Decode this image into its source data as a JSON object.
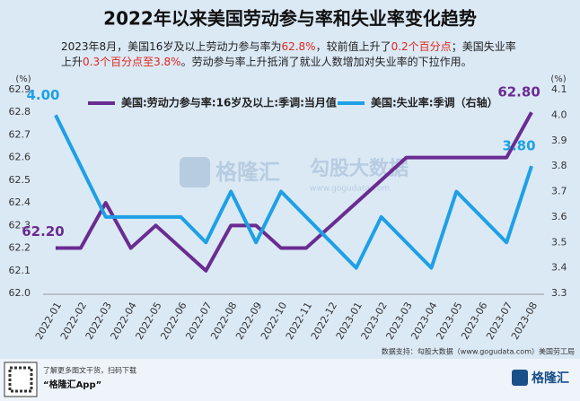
{
  "chart_data": {
    "type": "line",
    "title": "2022年以来美国劳动参与率和失业率变化趋势",
    "subtitle_lines": [
      [
        {
          "text": "2023年8月，美国16岁及以上劳动力参与率为"
        },
        {
          "text": "62.8%",
          "highlight": true
        },
        {
          "text": "，较前值上升了"
        },
        {
          "text": "0.2个百分点",
          "highlight": true
        },
        {
          "text": "；美国失业率"
        }
      ],
      [
        {
          "text": "上升"
        },
        {
          "text": "0.3个百分点至3.8%",
          "highlight": true
        },
        {
          "text": "。劳动参与率上升抵消了就业人数增加对失业率的下拉作用。"
        }
      ]
    ],
    "ylabel": "(%)",
    "y2label": "(%)",
    "categories": [
      "2022-01",
      "2022-02",
      "2022-03",
      "2022-04",
      "2022-05",
      "2022-06",
      "2022-07",
      "2022-08",
      "2022-09",
      "2022-10",
      "2022-11",
      "2022-12",
      "2023-01",
      "2023-02",
      "2023-03",
      "2023-04",
      "2023-05",
      "2023-06",
      "2023-07",
      "2023-08"
    ],
    "series": [
      {
        "name": "美国:劳动力参与率:16岁及以上:季调:当月值",
        "color": "#6a2c91",
        "values": [
          62.2,
          62.2,
          62.4,
          62.2,
          62.3,
          62.2,
          62.1,
          62.3,
          62.3,
          62.2,
          62.2,
          62.3,
          62.4,
          62.5,
          62.6,
          62.6,
          62.6,
          62.6,
          62.6,
          62.8
        ],
        "value_labels": [
          "62.20",
          null,
          null,
          null,
          null,
          null,
          null,
          null,
          null,
          null,
          null,
          null,
          null,
          null,
          null,
          null,
          null,
          null,
          null,
          "62.80"
        ]
      },
      {
        "name": "美国:失业率:季调（右轴）",
        "color": "#1ea0e6",
        "axis": "y2",
        "values": [
          4.0,
          3.8,
          3.6,
          3.6,
          3.6,
          3.6,
          3.5,
          3.7,
          3.5,
          3.7,
          3.6,
          3.5,
          3.4,
          3.6,
          3.5,
          3.4,
          3.7,
          3.6,
          3.5,
          3.8
        ],
        "value_labels": [
          "4.00",
          null,
          null,
          null,
          null,
          null,
          null,
          null,
          null,
          null,
          null,
          null,
          null,
          null,
          null,
          null,
          null,
          null,
          null,
          "3.80"
        ]
      }
    ],
    "ylim": [
      62.0,
      62.9
    ],
    "yticks": [
      {
        "value": 62,
        "label": "62.0"
      },
      62.1,
      62.2,
      62.3,
      62.4,
      62.5,
      62.6,
      62.7,
      62.8,
      62.9
    ],
    "y2lim": [
      3.3,
      4.1
    ],
    "y2ticks": [
      3.3,
      3.4,
      3.5,
      3.6,
      3.7,
      3.8,
      3.9,
      {
        "value": 4,
        "label": "4.0"
      },
      4.1
    ],
    "grid": false,
    "source": "数据支持：勾股大数据（www.gogudata.com）美国劳工局"
  },
  "watermark": {
    "brand": "格隆汇",
    "partner": "勾股大数据",
    "url": "www.gogudata.com"
  },
  "footer": {
    "line1": "了解更多图文干货，扫码下载",
    "line2": "“格隆汇App”",
    "logo": "格隆汇"
  }
}
